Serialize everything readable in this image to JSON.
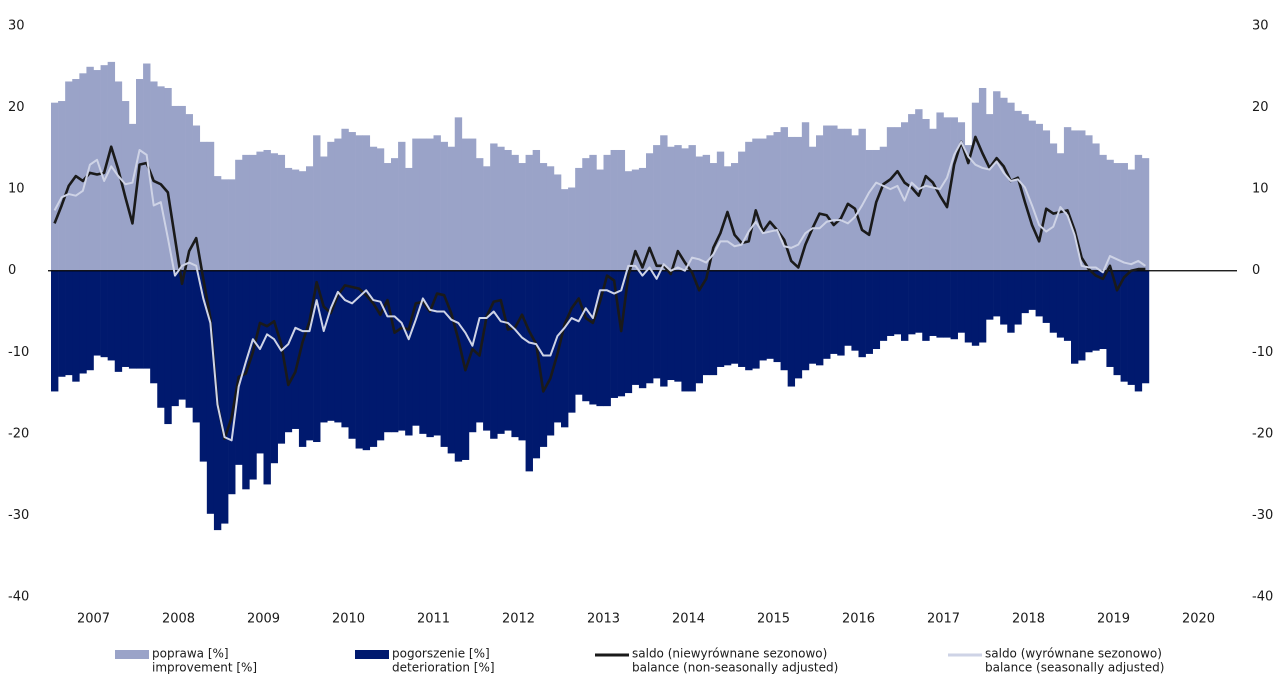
{
  "chart_data": {
    "type": "bar",
    "categories": [
      null,
      null,
      null,
      null,
      null,
      null,
      "2007",
      null,
      null,
      null,
      null,
      null,
      null,
      null,
      null,
      null,
      null,
      null,
      "2008",
      null,
      null,
      null,
      null,
      null,
      null,
      null,
      null,
      null,
      null,
      null,
      "2009",
      null,
      null,
      null,
      null,
      null,
      null,
      null,
      null,
      null,
      null,
      null,
      "2010",
      null,
      null,
      null,
      null,
      null,
      null,
      null,
      null,
      null,
      null,
      null,
      "2011",
      null,
      null,
      null,
      null,
      null,
      null,
      null,
      null,
      null,
      null,
      null,
      "2012",
      null,
      null,
      null,
      null,
      null,
      null,
      null,
      null,
      null,
      null,
      null,
      "2013",
      null,
      null,
      null,
      null,
      null,
      null,
      null,
      null,
      null,
      null,
      null,
      "2014",
      null,
      null,
      null,
      null,
      null,
      null,
      null,
      null,
      null,
      null,
      null,
      "2015",
      null,
      null,
      null,
      null,
      null,
      null,
      null,
      null,
      null,
      null,
      null,
      "2016",
      null,
      null,
      null,
      null,
      null,
      null,
      null,
      null,
      null,
      null,
      null,
      "2017",
      null,
      null,
      null,
      null,
      null,
      null,
      null,
      null,
      null,
      null,
      null,
      "2018",
      null,
      null,
      null,
      null,
      null,
      null,
      null,
      null,
      null,
      null,
      null,
      "2019",
      null,
      null,
      null,
      null,
      null,
      null,
      null,
      null,
      null,
      null,
      null,
      "2020",
      null,
      null,
      null,
      null,
      null
    ],
    "series": [
      {
        "name": [
          "poprawa [%]",
          "improvement [%]"
        ],
        "type": "bar",
        "color": "#9aa3c8",
        "values": [
          20.6,
          20.8,
          23.2,
          23.5,
          24.2,
          25.0,
          24.6,
          25.2,
          25.6,
          23.2,
          20.8,
          18.0,
          23.5,
          25.4,
          23.2,
          22.6,
          22.4,
          20.2,
          20.2,
          19.2,
          17.8,
          15.8,
          15.8,
          11.6,
          11.2,
          11.2,
          13.6,
          14.2,
          14.2,
          14.6,
          14.8,
          14.4,
          14.2,
          12.6,
          12.4,
          12.2,
          12.8,
          16.6,
          14.0,
          15.8,
          16.2,
          17.4,
          17.0,
          16.6,
          16.6,
          15.2,
          15.0,
          13.2,
          13.8,
          15.8,
          12.6,
          16.2,
          16.2,
          16.2,
          16.6,
          15.8,
          15.2,
          18.8,
          16.2,
          16.2,
          13.8,
          12.8,
          15.6,
          15.2,
          14.8,
          14.2,
          13.2,
          14.2,
          14.8,
          13.2,
          12.8,
          11.8,
          10.0,
          10.2,
          12.6,
          13.8,
          14.2,
          12.4,
          14.2,
          14.8,
          14.8,
          12.2,
          12.4,
          12.6,
          14.4,
          15.4,
          16.6,
          15.2,
          15.4,
          15.0,
          15.4,
          14.0,
          14.2,
          13.2,
          14.6,
          12.8,
          13.2,
          14.6,
          15.8,
          16.2,
          16.2,
          16.6,
          17.0,
          17.6,
          16.4,
          16.4,
          18.2,
          15.2,
          16.6,
          17.8,
          17.8,
          17.4,
          17.4,
          16.6,
          17.4,
          14.8,
          14.8,
          15.2,
          17.6,
          17.6,
          18.2,
          19.2,
          19.8,
          18.6,
          17.4,
          19.4,
          18.8,
          18.8,
          18.2,
          15.4,
          20.6,
          22.4,
          19.2,
          22.0,
          21.2,
          20.6,
          19.6,
          19.2,
          18.4,
          18.0,
          17.2,
          15.6,
          14.4,
          17.6,
          17.2,
          17.2,
          16.6,
          15.6,
          14.2,
          13.6,
          13.2,
          13.2,
          12.4,
          14.2,
          13.8,
          null,
          null,
          null,
          null,
          null,
          null,
          null,
          null,
          null,
          null,
          null,
          null,
          null
        ]
      },
      {
        "name": [
          "pogorszenie [%]",
          "deterioration [%]"
        ],
        "type": "bar",
        "color": "#00196e",
        "values": [
          -14.8,
          -13.0,
          -12.8,
          -13.6,
          -12.6,
          -12.2,
          -10.4,
          -10.6,
          -11.0,
          -12.4,
          -11.8,
          -12.0,
          -12.0,
          -12.0,
          -13.8,
          -16.8,
          -18.8,
          -16.6,
          -15.8,
          -16.8,
          -18.6,
          -23.4,
          -29.8,
          -31.8,
          -31.0,
          -27.4,
          -23.8,
          -26.8,
          -25.6,
          -22.4,
          -26.2,
          -23.6,
          -21.2,
          -19.8,
          -19.4,
          -21.6,
          -20.8,
          -21.0,
          -18.6,
          -18.4,
          -18.6,
          -19.2,
          -20.6,
          -21.8,
          -22.0,
          -21.6,
          -20.8,
          -19.8,
          -19.8,
          -19.6,
          -20.2,
          -19.0,
          -20.0,
          -20.4,
          -20.2,
          -21.6,
          -22.4,
          -23.4,
          -23.2,
          -19.8,
          -18.6,
          -19.6,
          -20.6,
          -20.0,
          -19.6,
          -20.4,
          -20.8,
          -24.6,
          -23.0,
          -21.6,
          -20.2,
          -18.6,
          -19.2,
          -17.4,
          -15.2,
          -16.0,
          -16.4,
          -16.6,
          -16.6,
          -15.6,
          -15.4,
          -15.0,
          -14.0,
          -14.4,
          -13.8,
          -13.2,
          -14.2,
          -13.4,
          -13.6,
          -14.8,
          -14.8,
          -13.8,
          -12.8,
          -12.8,
          -11.8,
          -11.6,
          -11.4,
          -11.8,
          -12.2,
          -12.0,
          -11.0,
          -10.8,
          -11.2,
          -12.2,
          -14.2,
          -13.2,
          -12.2,
          -11.4,
          -11.6,
          -10.8,
          -10.2,
          -10.4,
          -9.2,
          -9.8,
          -10.6,
          -10.2,
          -9.6,
          -8.6,
          -8.0,
          -7.8,
          -8.6,
          -7.8,
          -7.6,
          -8.6,
          -8.0,
          -8.2,
          -8.2,
          -8.4,
          -7.6,
          -8.8,
          -9.2,
          -8.8,
          -6.0,
          -5.6,
          -6.6,
          -7.6,
          -6.6,
          -5.2,
          -4.8,
          -5.6,
          -6.4,
          -7.6,
          -8.2,
          -8.6,
          -11.4,
          -11.0,
          -10.0,
          -9.8,
          -9.6,
          -11.8,
          -12.8,
          -13.6,
          -14.0,
          -14.8,
          -13.8,
          null,
          null,
          null,
          null,
          null,
          null,
          null,
          null,
          null,
          null,
          null,
          null,
          null
        ]
      },
      {
        "name": [
          "saldo (niewyrównane sezonowo)",
          "balance (non-seasonally adjusted)"
        ],
        "type": "line",
        "color": "#1a1a1a",
        "values": [
          5.8,
          8.0,
          10.4,
          11.6,
          11.0,
          12.0,
          11.8,
          12.0,
          15.2,
          12.4,
          9.0,
          5.8,
          13.0,
          13.2,
          11.0,
          10.6,
          9.6,
          4.0,
          -1.6,
          2.4,
          4.0,
          -1.0,
          -5.8,
          -16.2,
          -20.6,
          -18.0,
          -13.0,
          -12.6,
          -10.0,
          -6.4,
          -6.8,
          -6.2,
          -9.0,
          -14.0,
          -12.4,
          -8.8,
          -6.2,
          -1.4,
          -4.4,
          -5.2,
          -3.0,
          -1.8,
          -2.0,
          -2.2,
          -3.0,
          -4.0,
          -5.4,
          -3.6,
          -7.6,
          -7.0,
          -7.2,
          -4.0,
          -3.8,
          -5.0,
          -2.8,
          -3.0,
          -5.2,
          -8.4,
          -12.2,
          -9.6,
          -10.4,
          -5.6,
          -3.8,
          -3.6,
          -7.2,
          -7.0,
          -5.4,
          -7.4,
          -9.0,
          -14.8,
          -13.2,
          -10.2,
          -6.6,
          -4.6,
          -3.4,
          -5.8,
          -6.4,
          -3.8,
          -0.6,
          -1.2,
          -7.4,
          -0.6,
          2.4,
          0.4,
          2.8,
          0.6,
          0.6,
          -0.4,
          2.4,
          1.0,
          -0.2,
          -2.4,
          -1.0,
          2.8,
          4.6,
          7.2,
          4.4,
          3.4,
          3.6,
          7.4,
          4.8,
          6.0,
          5.0,
          3.8,
          1.2,
          0.4,
          3.2,
          5.2,
          7.0,
          6.8,
          5.6,
          6.4,
          8.2,
          7.6,
          5.0,
          4.4,
          8.4,
          10.6,
          11.2,
          12.2,
          10.8,
          10.2,
          9.2,
          11.6,
          10.8,
          9.2,
          7.8,
          13.0,
          15.8,
          13.2,
          16.4,
          14.4,
          12.6,
          13.8,
          12.8,
          11.0,
          11.4,
          8.4,
          5.6,
          3.6,
          7.6,
          7.0,
          7.2,
          7.4,
          5.0,
          1.6,
          0.2,
          -0.6,
          -1.0,
          0.6,
          -2.4,
          -0.8,
          0.0,
          0.2,
          0.2,
          null,
          null,
          null,
          null,
          null,
          null,
          null,
          null,
          null,
          null,
          null,
          null,
          null
        ]
      },
      {
        "name": [
          "saldo (wyrównane sezonowo)",
          "balance (seasonally adjusted)"
        ],
        "type": "line",
        "color": "#ced3e6",
        "values": [
          7.4,
          9.0,
          9.4,
          9.2,
          9.8,
          13.0,
          13.6,
          11.0,
          12.8,
          11.6,
          10.6,
          10.8,
          14.8,
          14.2,
          8.0,
          8.4,
          4.0,
          -0.6,
          0.6,
          1.0,
          0.6,
          -3.4,
          -6.4,
          -16.4,
          -20.4,
          -20.8,
          -14.2,
          -11.2,
          -8.4,
          -9.6,
          -7.8,
          -8.4,
          -9.8,
          -9.0,
          -7.0,
          -7.4,
          -7.4,
          -3.6,
          -7.4,
          -4.6,
          -2.6,
          -3.6,
          -4.0,
          -3.2,
          -2.4,
          -3.6,
          -3.8,
          -5.6,
          -5.6,
          -6.4,
          -8.4,
          -6.0,
          -3.4,
          -4.8,
          -5.0,
          -5.0,
          -6.0,
          -6.4,
          -7.6,
          -9.2,
          -5.8,
          -5.8,
          -5.0,
          -6.2,
          -6.4,
          -7.2,
          -8.2,
          -8.8,
          -9.0,
          -10.4,
          -10.4,
          -8.0,
          -7.0,
          -5.8,
          -6.2,
          -4.6,
          -5.8,
          -2.4,
          -2.4,
          -2.8,
          -2.4,
          0.6,
          0.6,
          -0.6,
          0.4,
          -1.0,
          0.8,
          0.0,
          0.4,
          0.0,
          1.6,
          1.4,
          1.0,
          2.0,
          3.6,
          3.6,
          3.0,
          3.2,
          4.8,
          6.0,
          4.6,
          4.8,
          5.0,
          3.0,
          2.8,
          3.2,
          4.6,
          5.2,
          5.2,
          6.0,
          6.2,
          6.2,
          5.8,
          6.6,
          8.0,
          9.6,
          10.8,
          10.4,
          10.0,
          10.4,
          8.6,
          10.8,
          10.0,
          10.4,
          10.2,
          10.0,
          11.4,
          14.2,
          15.8,
          14.0,
          13.0,
          12.6,
          12.4,
          13.4,
          12.0,
          11.0,
          11.2,
          10.2,
          8.0,
          5.6,
          4.8,
          5.4,
          7.8,
          6.8,
          4.4,
          0.6,
          0.4,
          0.4,
          -0.2,
          1.8,
          1.4,
          1.0,
          0.8,
          1.2,
          0.6,
          null,
          null,
          null,
          null,
          null,
          null,
          null,
          null,
          null,
          null,
          null,
          null,
          null
        ]
      }
    ],
    "ylim": [
      -40,
      30
    ],
    "yticks": [
      -40,
      -30,
      -20,
      -10,
      0,
      10,
      20,
      30
    ],
    "y2lim": [
      -40,
      30
    ],
    "y2ticks": [
      -40,
      -30,
      -20,
      -10,
      0,
      10,
      20,
      30
    ],
    "grid": false,
    "legend": "bottom"
  }
}
